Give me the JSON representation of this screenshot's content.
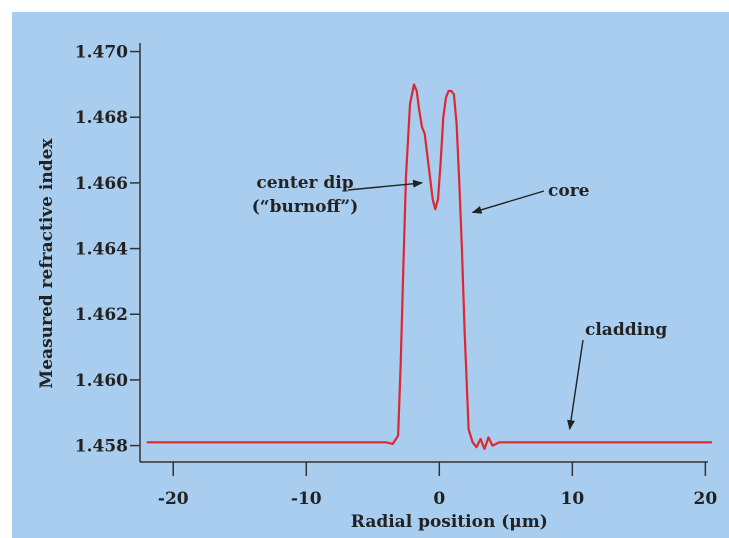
{
  "chart_data": {
    "type": "line",
    "title": "",
    "xlabel": "Radial position (μm)",
    "ylabel": "Measured refractive index",
    "xlim": [
      -22.5,
      20.5
    ],
    "ylim": [
      1.4575,
      1.4702
    ],
    "xticks": [
      -20,
      -10,
      0,
      10,
      20
    ],
    "xtick_labels": [
      "-20",
      "-10",
      "0",
      "10",
      "20"
    ],
    "yticks": [
      1.458,
      1.46,
      1.462,
      1.464,
      1.466,
      1.468,
      1.47
    ],
    "ytick_labels": [
      "1.458",
      "1.460",
      "1.462",
      "1.464",
      "1.466",
      "1.468",
      "1.470"
    ],
    "grid": false,
    "line_color": "#e0262e",
    "series": [
      {
        "x": [
          -22,
          -20,
          -18,
          -16,
          -14,
          -12,
          -10,
          -8,
          -6,
          -4,
          -3.5,
          -3.1,
          -2.9,
          -2.7,
          -2.5,
          -2.2,
          -1.9,
          -1.7,
          -1.5,
          -1.3,
          -1.1,
          -0.8,
          -0.5,
          -0.3,
          -0.1,
          0.1,
          0.3,
          0.5,
          0.7,
          0.9,
          1.1,
          1.3,
          1.5,
          1.7,
          1.9,
          2.2,
          2.5,
          2.8,
          3.1,
          3.4,
          3.7,
          4.0,
          4.5,
          5,
          6,
          8,
          10,
          12,
          14,
          16,
          18,
          20.5
        ],
        "y": [
          1.4581,
          1.4581,
          1.4581,
          1.4581,
          1.4581,
          1.4581,
          1.4581,
          1.4581,
          1.4581,
          1.4581,
          1.45805,
          1.4583,
          1.4605,
          1.4635,
          1.4662,
          1.4684,
          1.469,
          1.4688,
          1.4682,
          1.4677,
          1.4675,
          1.4665,
          1.4655,
          1.4652,
          1.4655,
          1.4666,
          1.468,
          1.4686,
          1.4688,
          1.4688,
          1.4687,
          1.4678,
          1.466,
          1.464,
          1.4615,
          1.4585,
          1.4581,
          1.45795,
          1.4582,
          1.4579,
          1.45825,
          1.458,
          1.4581,
          1.4581,
          1.4581,
          1.4581,
          1.4581,
          1.4581,
          1.4581,
          1.4581,
          1.4581,
          1.4581
        ]
      }
    ],
    "annotations": [
      {
        "lines": [
          "center dip",
          "(“burnoff”)"
        ],
        "target": [
          -1.0,
          1.466
        ]
      },
      {
        "lines": [
          "core"
        ],
        "target": [
          2.2,
          1.4651
        ]
      },
      {
        "lines": [
          "cladding"
        ],
        "target": [
          9.5,
          1.4585
        ]
      }
    ]
  }
}
